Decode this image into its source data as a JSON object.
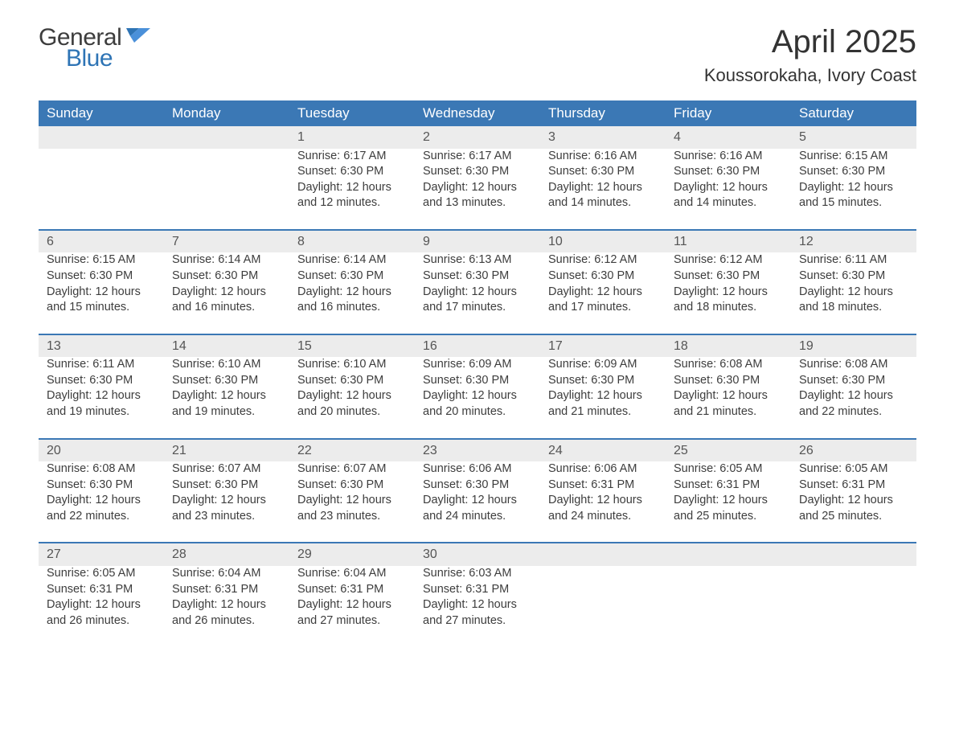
{
  "logo": {
    "text1": "General",
    "text2": "Blue",
    "brand_color": "#2e74b5",
    "text_color": "#3d3d3d"
  },
  "title": "April 2025",
  "location": "Koussorokaha, Ivory Coast",
  "colors": {
    "header_bg": "#3b78b5",
    "header_text": "#ffffff",
    "daynum_bg": "#ececec",
    "row_border": "#3b78b5",
    "body_text": "#3d3d3d",
    "page_bg": "#ffffff"
  },
  "typography": {
    "title_fontsize": 40,
    "location_fontsize": 22,
    "weekday_fontsize": 17,
    "daynum_fontsize": 16,
    "cell_fontsize": 14.5
  },
  "weekdays": [
    "Sunday",
    "Monday",
    "Tuesday",
    "Wednesday",
    "Thursday",
    "Friday",
    "Saturday"
  ],
  "labels": {
    "sunrise": "Sunrise: ",
    "sunset": "Sunset: ",
    "daylight": "Daylight: "
  },
  "weeks": [
    [
      null,
      null,
      {
        "d": "1",
        "sr": "6:17 AM",
        "ss": "6:30 PM",
        "dl": "12 hours and 12 minutes."
      },
      {
        "d": "2",
        "sr": "6:17 AM",
        "ss": "6:30 PM",
        "dl": "12 hours and 13 minutes."
      },
      {
        "d": "3",
        "sr": "6:16 AM",
        "ss": "6:30 PM",
        "dl": "12 hours and 14 minutes."
      },
      {
        "d": "4",
        "sr": "6:16 AM",
        "ss": "6:30 PM",
        "dl": "12 hours and 14 minutes."
      },
      {
        "d": "5",
        "sr": "6:15 AM",
        "ss": "6:30 PM",
        "dl": "12 hours and 15 minutes."
      }
    ],
    [
      {
        "d": "6",
        "sr": "6:15 AM",
        "ss": "6:30 PM",
        "dl": "12 hours and 15 minutes."
      },
      {
        "d": "7",
        "sr": "6:14 AM",
        "ss": "6:30 PM",
        "dl": "12 hours and 16 minutes."
      },
      {
        "d": "8",
        "sr": "6:14 AM",
        "ss": "6:30 PM",
        "dl": "12 hours and 16 minutes."
      },
      {
        "d": "9",
        "sr": "6:13 AM",
        "ss": "6:30 PM",
        "dl": "12 hours and 17 minutes."
      },
      {
        "d": "10",
        "sr": "6:12 AM",
        "ss": "6:30 PM",
        "dl": "12 hours and 17 minutes."
      },
      {
        "d": "11",
        "sr": "6:12 AM",
        "ss": "6:30 PM",
        "dl": "12 hours and 18 minutes."
      },
      {
        "d": "12",
        "sr": "6:11 AM",
        "ss": "6:30 PM",
        "dl": "12 hours and 18 minutes."
      }
    ],
    [
      {
        "d": "13",
        "sr": "6:11 AM",
        "ss": "6:30 PM",
        "dl": "12 hours and 19 minutes."
      },
      {
        "d": "14",
        "sr": "6:10 AM",
        "ss": "6:30 PM",
        "dl": "12 hours and 19 minutes."
      },
      {
        "d": "15",
        "sr": "6:10 AM",
        "ss": "6:30 PM",
        "dl": "12 hours and 20 minutes."
      },
      {
        "d": "16",
        "sr": "6:09 AM",
        "ss": "6:30 PM",
        "dl": "12 hours and 20 minutes."
      },
      {
        "d": "17",
        "sr": "6:09 AM",
        "ss": "6:30 PM",
        "dl": "12 hours and 21 minutes."
      },
      {
        "d": "18",
        "sr": "6:08 AM",
        "ss": "6:30 PM",
        "dl": "12 hours and 21 minutes."
      },
      {
        "d": "19",
        "sr": "6:08 AM",
        "ss": "6:30 PM",
        "dl": "12 hours and 22 minutes."
      }
    ],
    [
      {
        "d": "20",
        "sr": "6:08 AM",
        "ss": "6:30 PM",
        "dl": "12 hours and 22 minutes."
      },
      {
        "d": "21",
        "sr": "6:07 AM",
        "ss": "6:30 PM",
        "dl": "12 hours and 23 minutes."
      },
      {
        "d": "22",
        "sr": "6:07 AM",
        "ss": "6:30 PM",
        "dl": "12 hours and 23 minutes."
      },
      {
        "d": "23",
        "sr": "6:06 AM",
        "ss": "6:30 PM",
        "dl": "12 hours and 24 minutes."
      },
      {
        "d": "24",
        "sr": "6:06 AM",
        "ss": "6:31 PM",
        "dl": "12 hours and 24 minutes."
      },
      {
        "d": "25",
        "sr": "6:05 AM",
        "ss": "6:31 PM",
        "dl": "12 hours and 25 minutes."
      },
      {
        "d": "26",
        "sr": "6:05 AM",
        "ss": "6:31 PM",
        "dl": "12 hours and 25 minutes."
      }
    ],
    [
      {
        "d": "27",
        "sr": "6:05 AM",
        "ss": "6:31 PM",
        "dl": "12 hours and 26 minutes."
      },
      {
        "d": "28",
        "sr": "6:04 AM",
        "ss": "6:31 PM",
        "dl": "12 hours and 26 minutes."
      },
      {
        "d": "29",
        "sr": "6:04 AM",
        "ss": "6:31 PM",
        "dl": "12 hours and 27 minutes."
      },
      {
        "d": "30",
        "sr": "6:03 AM",
        "ss": "6:31 PM",
        "dl": "12 hours and 27 minutes."
      },
      null,
      null,
      null
    ]
  ]
}
